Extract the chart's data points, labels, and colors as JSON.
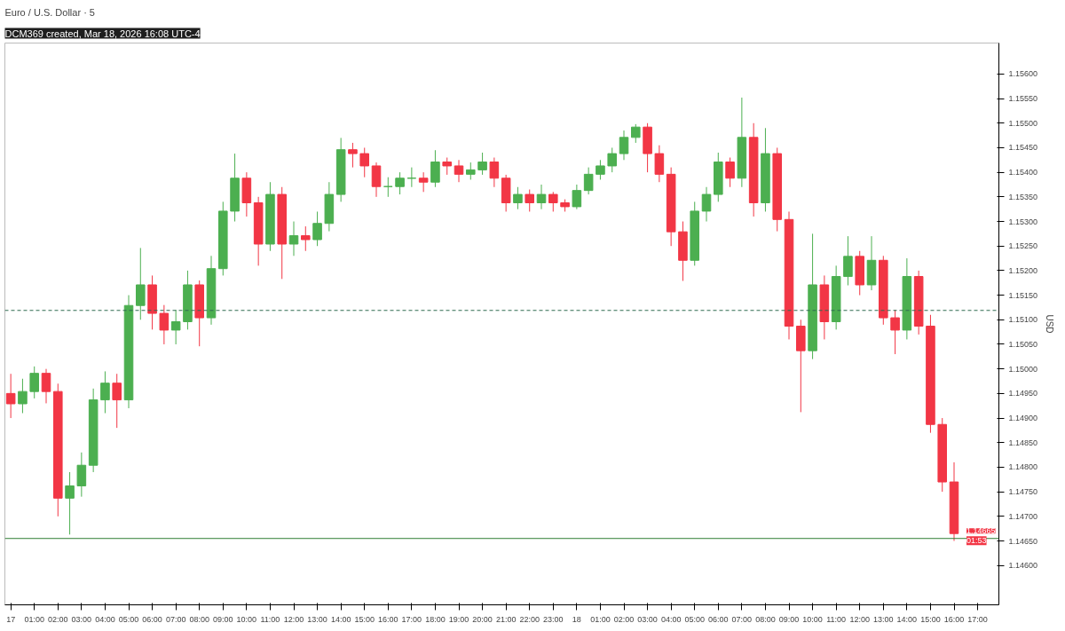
{
  "chart_data": {
    "type": "candlestick",
    "subtitle": "DCM369 created, Mar 18, 2026 16:08 UTC-4",
    "title": "Euro / U.S. Dollar · 5",
    "ylabel": "USD",
    "x": [
      "2026-03-17T00:00",
      "2026-03-17T00:30",
      "2026-03-17T01:00",
      "2026-03-17T01:30",
      "2026-03-17T02:00",
      "2026-03-17T02:30",
      "2026-03-17T03:00",
      "2026-03-17T03:30",
      "2026-03-17T04:00",
      "2026-03-17T04:30",
      "2026-03-17T05:00",
      "2026-03-17T05:30",
      "2026-03-17T06:00",
      "2026-03-17T06:30",
      "2026-03-17T07:00",
      "2026-03-17T07:30",
      "2026-03-17T08:00",
      "2026-03-17T08:30",
      "2026-03-17T09:00",
      "2026-03-17T09:30",
      "2026-03-17T10:00",
      "2026-03-17T10:30",
      "2026-03-17T11:00",
      "2026-03-17T11:30",
      "2026-03-17T12:00",
      "2026-03-17T12:30",
      "2026-03-17T13:00",
      "2026-03-17T13:30",
      "2026-03-17T14:00",
      "2026-03-17T14:30",
      "2026-03-17T15:00",
      "2026-03-17T15:30",
      "2026-03-17T16:00",
      "2026-03-17T16:30",
      "2026-03-17T17:00",
      "2026-03-17T17:30",
      "2026-03-17T18:00",
      "2026-03-17T18:30",
      "2026-03-17T19:00",
      "2026-03-17T19:30",
      "2026-03-17T20:00",
      "2026-03-17T20:30",
      "2026-03-17T21:00",
      "2026-03-17T21:30",
      "2026-03-17T22:00",
      "2026-03-17T22:30",
      "2026-03-17T23:00",
      "2026-03-17T23:30",
      "2026-03-18T00:00",
      "2026-03-18T00:30",
      "2026-03-18T01:00",
      "2026-03-18T01:30",
      "2026-03-18T02:00",
      "2026-03-18T02:30",
      "2026-03-18T03:00",
      "2026-03-18T03:30",
      "2026-03-18T04:00",
      "2026-03-18T04:30",
      "2026-03-18T05:00",
      "2026-03-18T05:30",
      "2026-03-18T06:00",
      "2026-03-18T06:30",
      "2026-03-18T07:00",
      "2026-03-18T07:30",
      "2026-03-18T08:00",
      "2026-03-18T08:30",
      "2026-03-18T09:00",
      "2026-03-18T09:30",
      "2026-03-18T10:00",
      "2026-03-18T10:30",
      "2026-03-18T11:00",
      "2026-03-18T11:30",
      "2026-03-18T12:00",
      "2026-03-18T12:30",
      "2026-03-18T13:00",
      "2026-03-18T13:30",
      "2026-03-18T14:00",
      "2026-03-18T14:30",
      "2026-03-18T15:00",
      "2026-03-18T15:30",
      "2026-03-18T16:00"
    ],
    "ohlc": [
      [
        1.1495,
        1.1499,
        1.149,
        1.14929
      ],
      [
        1.14929,
        1.1498,
        1.1491,
        1.14954
      ],
      [
        1.14954,
        1.15005,
        1.1494,
        1.14991
      ],
      [
        1.14991,
        1.15,
        1.1493,
        1.14954
      ],
      [
        1.14954,
        1.1497,
        1.147,
        1.14737
      ],
      [
        1.14737,
        1.1479,
        1.14663,
        1.14762
      ],
      [
        1.14762,
        1.1483,
        1.1474,
        1.14804
      ],
      [
        1.14804,
        1.1496,
        1.1479,
        1.14937
      ],
      [
        1.14937,
        1.14995,
        1.1491,
        1.14971
      ],
      [
        1.14971,
        1.1499,
        1.1488,
        1.14937
      ],
      [
        1.14937,
        1.1515,
        1.1492,
        1.15129
      ],
      [
        1.15129,
        1.15246,
        1.151,
        1.15171
      ],
      [
        1.15171,
        1.1519,
        1.1508,
        1.15113
      ],
      [
        1.15113,
        1.1513,
        1.1505,
        1.15079
      ],
      [
        1.15079,
        1.1512,
        1.1505,
        1.15096
      ],
      [
        1.15096,
        1.152,
        1.1508,
        1.15171
      ],
      [
        1.15171,
        1.1518,
        1.15046,
        1.15104
      ],
      [
        1.15104,
        1.1523,
        1.1509,
        1.15204
      ],
      [
        1.15204,
        1.1534,
        1.1519,
        1.15321
      ],
      [
        1.15321,
        1.15438,
        1.153,
        1.15388
      ],
      [
        1.15388,
        1.154,
        1.1531,
        1.15338
      ],
      [
        1.15338,
        1.1535,
        1.1521,
        1.15254
      ],
      [
        1.15254,
        1.1538,
        1.1524,
        1.15355
      ],
      [
        1.15355,
        1.1537,
        1.15183,
        1.15254
      ],
      [
        1.15254,
        1.153,
        1.1523,
        1.15271
      ],
      [
        1.15271,
        1.1529,
        1.1524,
        1.15263
      ],
      [
        1.15263,
        1.1532,
        1.1525,
        1.15296
      ],
      [
        1.15296,
        1.1538,
        1.1528,
        1.15355
      ],
      [
        1.15355,
        1.1547,
        1.1534,
        1.15446
      ],
      [
        1.15446,
        1.1546,
        1.1541,
        1.15438
      ],
      [
        1.15438,
        1.1545,
        1.1539,
        1.15413
      ],
      [
        1.15413,
        1.1542,
        1.1535,
        1.15371
      ],
      [
        1.15371,
        1.1539,
        1.1535,
        1.15371
      ],
      [
        1.15371,
        1.154,
        1.15355,
        1.15388
      ],
      [
        1.15388,
        1.1541,
        1.1537,
        1.15388
      ],
      [
        1.15388,
        1.154,
        1.1536,
        1.1538
      ],
      [
        1.1538,
        1.15445,
        1.1537,
        1.15421
      ],
      [
        1.15421,
        1.1543,
        1.15395,
        1.15413
      ],
      [
        1.15413,
        1.15425,
        1.1538,
        1.15396
      ],
      [
        1.15396,
        1.1542,
        1.15385,
        1.15405
      ],
      [
        1.15405,
        1.1544,
        1.15395,
        1.15421
      ],
      [
        1.15421,
        1.1543,
        1.1537,
        1.15388
      ],
      [
        1.15388,
        1.15395,
        1.1532,
        1.15338
      ],
      [
        1.15338,
        1.1537,
        1.15325,
        1.15355
      ],
      [
        1.15355,
        1.15365,
        1.1532,
        1.15338
      ],
      [
        1.15338,
        1.15375,
        1.15325,
        1.15355
      ],
      [
        1.15355,
        1.1536,
        1.1532,
        1.15338
      ],
      [
        1.15338,
        1.15345,
        1.1532,
        1.1533
      ],
      [
        1.1533,
        1.15375,
        1.15325,
        1.15363
      ],
      [
        1.15363,
        1.1541,
        1.15355,
        1.15396
      ],
      [
        1.15396,
        1.15425,
        1.15385,
        1.15413
      ],
      [
        1.15413,
        1.1545,
        1.154,
        1.15438
      ],
      [
        1.15438,
        1.15485,
        1.15425,
        1.15471
      ],
      [
        1.15471,
        1.15498,
        1.1546,
        1.15492
      ],
      [
        1.15492,
        1.155,
        1.154,
        1.15438
      ],
      [
        1.15438,
        1.15455,
        1.1538,
        1.15396
      ],
      [
        1.15396,
        1.1541,
        1.1525,
        1.15279
      ],
      [
        1.15279,
        1.153,
        1.15179,
        1.15221
      ],
      [
        1.15221,
        1.1534,
        1.1521,
        1.15321
      ],
      [
        1.15321,
        1.1537,
        1.153,
        1.15355
      ],
      [
        1.15355,
        1.1544,
        1.1534,
        1.15421
      ],
      [
        1.15421,
        1.1543,
        1.1537,
        1.15388
      ],
      [
        1.15388,
        1.15552,
        1.1537,
        1.15471
      ],
      [
        1.15471,
        1.155,
        1.1531,
        1.15338
      ],
      [
        1.15338,
        1.1549,
        1.1532,
        1.15438
      ],
      [
        1.15438,
        1.1545,
        1.1528,
        1.15304
      ],
      [
        1.15304,
        1.1532,
        1.1506,
        1.15087
      ],
      [
        1.15087,
        1.151,
        1.14912,
        1.15037
      ],
      [
        1.15037,
        1.15275,
        1.1502,
        1.15171
      ],
      [
        1.15171,
        1.1519,
        1.1506,
        1.15096
      ],
      [
        1.15096,
        1.1521,
        1.1508,
        1.15188
      ],
      [
        1.15188,
        1.1527,
        1.1517,
        1.15229
      ],
      [
        1.15229,
        1.1524,
        1.1515,
        1.15171
      ],
      [
        1.15171,
        1.1527,
        1.1516,
        1.15221
      ],
      [
        1.15221,
        1.1523,
        1.1509,
        1.15104
      ],
      [
        1.15104,
        1.1512,
        1.1503,
        1.15079
      ],
      [
        1.15079,
        1.15225,
        1.1506,
        1.15188
      ],
      [
        1.15188,
        1.152,
        1.1507,
        1.15087
      ],
      [
        1.15087,
        1.1511,
        1.1487,
        1.14887
      ],
      [
        1.14887,
        1.149,
        1.1475,
        1.1477
      ],
      [
        1.1477,
        1.1481,
        1.1465,
        1.14665
      ]
    ],
    "colors": [
      "#f23645",
      "#4caf50",
      "#4caf50",
      "#f23645",
      "#f23645",
      "#4caf50",
      "#4caf50",
      "#4caf50",
      "#4caf50",
      "#f23645",
      "#4caf50",
      "#4caf50",
      "#f23645",
      "#f23645",
      "#4caf50",
      "#4caf50",
      "#f23645",
      "#4caf50",
      "#4caf50",
      "#4caf50",
      "#f23645",
      "#f23645",
      "#4caf50",
      "#f23645",
      "#4caf50",
      "#f23645",
      "#4caf50",
      "#4caf50",
      "#4caf50",
      "#f23645",
      "#f23645",
      "#f23645",
      "#4caf50",
      "#4caf50",
      "#4caf50",
      "#f23645",
      "#4caf50",
      "#f23645",
      "#f23645",
      "#4caf50",
      "#4caf50",
      "#f23645",
      "#f23645",
      "#4caf50",
      "#f23645",
      "#4caf50",
      "#f23645",
      "#f23645",
      "#4caf50",
      "#4caf50",
      "#4caf50",
      "#4caf50",
      "#4caf50",
      "#4caf50",
      "#f23645",
      "#f23645",
      "#f23645",
      "#f23645",
      "#4caf50",
      "#4caf50",
      "#4caf50",
      "#f23645",
      "#4caf50",
      "#f23645",
      "#4caf50",
      "#f23645",
      "#f23645",
      "#f23645",
      "#4caf50",
      "#f23645",
      "#4caf50",
      "#4caf50",
      "#f23645",
      "#4caf50",
      "#f23645",
      "#f23645",
      "#4caf50",
      "#f23645",
      "#f23645",
      "#f23645",
      "#f23645"
    ],
    "xlim": [
      "2026-03-16T23:45",
      "2026-03-18T17:54"
    ],
    "xticks": [
      {
        "value": "2026-03-17T00:00",
        "label": "17"
      },
      {
        "value": "2026-03-17T01:00",
        "label": "01:00"
      },
      {
        "value": "2026-03-17T02:00",
        "label": "02:00"
      },
      {
        "value": "2026-03-17T03:00",
        "label": "03:00"
      },
      {
        "value": "2026-03-17T04:00",
        "label": "04:00"
      },
      {
        "value": "2026-03-17T05:00",
        "label": "05:00"
      },
      {
        "value": "2026-03-17T06:00",
        "label": "06:00"
      },
      {
        "value": "2026-03-17T07:00",
        "label": "07:00"
      },
      {
        "value": "2026-03-17T08:00",
        "label": "08:00"
      },
      {
        "value": "2026-03-17T09:00",
        "label": "09:00"
      },
      {
        "value": "2026-03-17T10:00",
        "label": "10:00"
      },
      {
        "value": "2026-03-17T11:00",
        "label": "11:00"
      },
      {
        "value": "2026-03-17T12:00",
        "label": "12:00"
      },
      {
        "value": "2026-03-17T13:00",
        "label": "13:00"
      },
      {
        "value": "2026-03-17T14:00",
        "label": "14:00"
      },
      {
        "value": "2026-03-17T15:00",
        "label": "15:00"
      },
      {
        "value": "2026-03-17T16:00",
        "label": "16:00"
      },
      {
        "value": "2026-03-17T17:00",
        "label": "17:00"
      },
      {
        "value": "2026-03-17T18:00",
        "label": "18:00"
      },
      {
        "value": "2026-03-17T19:00",
        "label": "19:00"
      },
      {
        "value": "2026-03-17T20:00",
        "label": "20:00"
      },
      {
        "value": "2026-03-17T21:00",
        "label": "21:00"
      },
      {
        "value": "2026-03-17T22:00",
        "label": "22:00"
      },
      {
        "value": "2026-03-17T23:00",
        "label": "23:00"
      },
      {
        "value": "2026-03-18T00:00",
        "label": "18"
      },
      {
        "value": "2026-03-18T01:00",
        "label": "01:00"
      },
      {
        "value": "2026-03-18T02:00",
        "label": "02:00"
      },
      {
        "value": "2026-03-18T03:00",
        "label": "03:00"
      },
      {
        "value": "2026-03-18T04:00",
        "label": "04:00"
      },
      {
        "value": "2026-03-18T05:00",
        "label": "05:00"
      },
      {
        "value": "2026-03-18T06:00",
        "label": "06:00"
      },
      {
        "value": "2026-03-18T07:00",
        "label": "07:00"
      },
      {
        "value": "2026-03-18T08:00",
        "label": "08:00"
      },
      {
        "value": "2026-03-18T09:00",
        "label": "09:00"
      },
      {
        "value": "2026-03-18T10:00",
        "label": "10:00"
      },
      {
        "value": "2026-03-18T11:00",
        "label": "11:00"
      },
      {
        "value": "2026-03-18T12:00",
        "label": "12:00"
      },
      {
        "value": "2026-03-18T13:00",
        "label": "13:00"
      },
      {
        "value": "2026-03-18T14:00",
        "label": "14:00"
      },
      {
        "value": "2026-03-18T15:00",
        "label": "15:00"
      },
      {
        "value": "2026-03-18T16:00",
        "label": "16:00"
      },
      {
        "value": "2026-03-18T17:00",
        "label": "17:00"
      }
    ],
    "ylim": [
      1.1452,
      1.15663
    ],
    "yticks": [
      {
        "value": 1.146,
        "label": "1.14600"
      },
      {
        "value": 1.1465,
        "label": "1.14650"
      },
      {
        "value": 1.147,
        "label": "1.14700"
      },
      {
        "value": 1.1475,
        "label": "1.14750"
      },
      {
        "value": 1.148,
        "label": "1.14800"
      },
      {
        "value": 1.1485,
        "label": "1.14850"
      },
      {
        "value": 1.149,
        "label": "1.14900"
      },
      {
        "value": 1.1495,
        "label": "1.14950"
      },
      {
        "value": 1.15,
        "label": "1.15000"
      },
      {
        "value": 1.1505,
        "label": "1.15050"
      },
      {
        "value": 1.151,
        "label": "1.15100"
      },
      {
        "value": 1.1515,
        "label": "1.15150"
      },
      {
        "value": 1.152,
        "label": "1.15200"
      },
      {
        "value": 1.1525,
        "label": "1.15250"
      },
      {
        "value": 1.153,
        "label": "1.15300"
      },
      {
        "value": 1.1535,
        "label": "1.15350"
      },
      {
        "value": 1.154,
        "label": "1.15400"
      },
      {
        "value": 1.1545,
        "label": "1.15450"
      },
      {
        "value": 1.155,
        "label": "1.15500"
      },
      {
        "value": 1.1555,
        "label": "1.15550"
      },
      {
        "value": 1.156,
        "label": "1.15600"
      }
    ],
    "ref_lines": [
      {
        "axis": "y",
        "value": 1.15119,
        "color": "#2e6b4f",
        "line_style": "dashed"
      },
      {
        "axis": "y",
        "value": 1.14655,
        "color": "#2e7d32",
        "line_style": "solid"
      }
    ],
    "annotations": [
      {
        "text": "1.14665",
        "x": "2026-03-18T16:00",
        "y": 1.14665
      },
      "01:53"
    ],
    "grid": false
  }
}
